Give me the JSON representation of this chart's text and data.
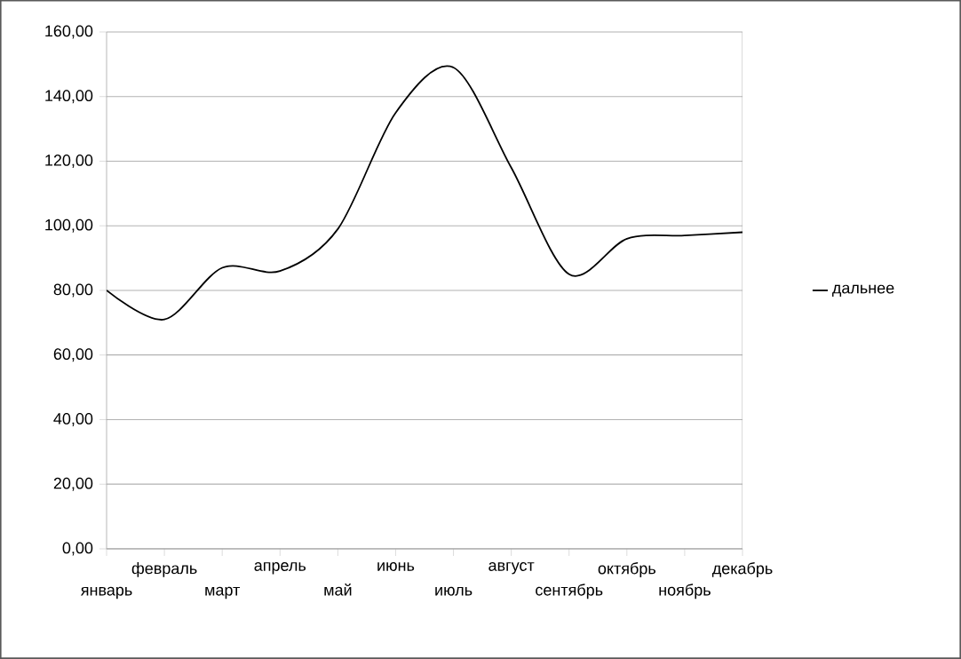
{
  "chart_data": {
    "type": "line",
    "categories": [
      "январь",
      "февраль",
      "март",
      "апрель",
      "май",
      "июнь",
      "июль",
      "август",
      "сентябрь",
      "октябрь",
      "ноябрь",
      "декабрь"
    ],
    "series": [
      {
        "name": "дальнее",
        "color": "#000000",
        "values": [
          80,
          71,
          87,
          86,
          99,
          135,
          149,
          118,
          85,
          96,
          97,
          98
        ]
      }
    ],
    "ylim": [
      0,
      160
    ],
    "yticks": [
      {
        "value": 0,
        "label": "0,00"
      },
      {
        "value": 20,
        "label": "20,00"
      },
      {
        "value": 40,
        "label": "40,00"
      },
      {
        "value": 60,
        "label": "60,00"
      },
      {
        "value": 80,
        "label": "80,00"
      },
      {
        "value": 100,
        "label": "100,00"
      },
      {
        "value": 120,
        "label": "120,00"
      },
      {
        "value": 140,
        "label": "140,00"
      },
      {
        "value": 160,
        "label": "160,00"
      }
    ],
    "grid": "y",
    "legend": "right",
    "marker": "none",
    "line_style": "solid"
  }
}
